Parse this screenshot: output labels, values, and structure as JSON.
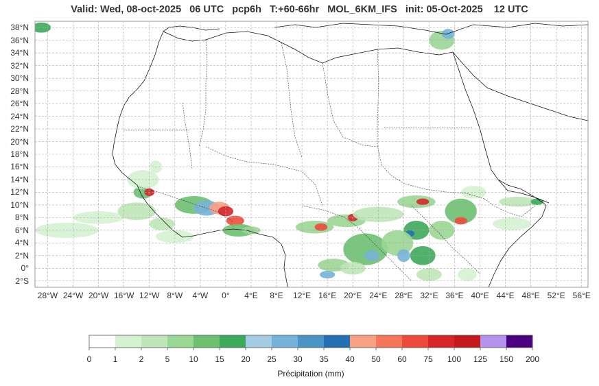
{
  "title": "Valid: Wed, 08-oct-2025   06 UTC   pcp6h   T:+60-66hr   MOL_6KM_IFS   init: 05-Oct-2025    12 UTC",
  "lat_labels": [
    "38°N",
    "36°N",
    "34°N",
    "32°N",
    "30°N",
    "28°N",
    "26°N",
    "24°N",
    "22°N",
    "20°N",
    "18°N",
    "16°N",
    "14°N",
    "12°N",
    "10°N",
    "8°N",
    "6°N",
    "4°N",
    "2°N",
    "0°",
    "2°S"
  ],
  "lon_labels": [
    "28°W",
    "24°W",
    "20°W",
    "16°W",
    "12°W",
    "8°W",
    "4°W",
    "0°",
    "4°E",
    "8°E",
    "12°E",
    "16°E",
    "20°E",
    "24°E",
    "28°E",
    "32°E",
    "36°E",
    "40°E",
    "44°E",
    "48°E",
    "52°E",
    "56°E"
  ],
  "lat_range": [
    -3,
    39
  ],
  "lon_range": [
    -30,
    57
  ],
  "colorbar": {
    "title": "Précipitation (mm)",
    "ticks": [
      "0",
      "1",
      "2",
      "5",
      "10",
      "15",
      "20",
      "25",
      "30",
      "35",
      "40",
      "50",
      "60",
      "75",
      "100",
      "125",
      "150",
      "200"
    ],
    "colors": [
      "#ffffff",
      "#d4f2d0",
      "#bfe6b8",
      "#9ad694",
      "#6cc070",
      "#3da95a",
      "#a3cbe3",
      "#74b2da",
      "#4b94c6",
      "#2570b3",
      "#f9a184",
      "#f6765a",
      "#ee4a3b",
      "#d8252a",
      "#c41a1d",
      "#b493eb",
      "#4b0082"
    ]
  }
}
